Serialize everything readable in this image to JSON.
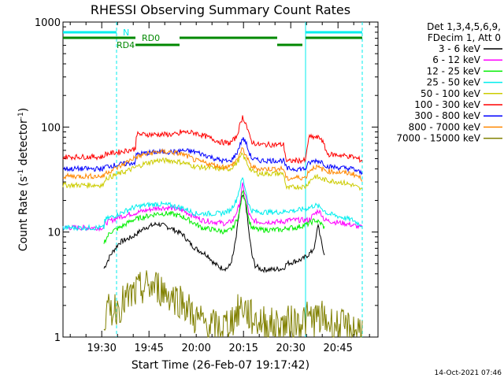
{
  "chart_data": {
    "type": "line",
    "title": "RHESSI Observing Summary Count Rates",
    "xlabel": "Start Time (26-Feb-07 19:17:42)",
    "ylabel_main": "Count Rate (s",
    "ylabel_sup1": "-1",
    "ylabel_mid": " detector",
    "ylabel_sup2": "-1",
    "ylabel_end": ")",
    "x_range_minutes": [
      0,
      100
    ],
    "y_range": [
      1,
      1000
    ],
    "y_scale": "log",
    "x_ticks": [
      {
        "label": "19:30",
        "minute": 12.3
      },
      {
        "label": "19:45",
        "minute": 27.3
      },
      {
        "label": "20:00",
        "minute": 42.3
      },
      {
        "label": "20:15",
        "minute": 57.3
      },
      {
        "label": "20:30",
        "minute": 72.3
      },
      {
        "label": "20:45",
        "minute": 87.3
      }
    ],
    "y_ticks": [
      {
        "label": "1000",
        "value": 1000
      },
      {
        "label": "100",
        "value": 100
      },
      {
        "label": "10",
        "value": 10
      },
      {
        "label": "1",
        "value": 1
      }
    ],
    "legend_header": [
      "Det 1,3,4,5,6,9,",
      "FDecim 1, Att 0"
    ],
    "series": [
      {
        "name": "3 - 6 keV",
        "color": "#000000",
        "points": [
          [
            13,
            4.5
          ],
          [
            15,
            6
          ],
          [
            18,
            8
          ],
          [
            22,
            9
          ],
          [
            26,
            11
          ],
          [
            30,
            12
          ],
          [
            34,
            11
          ],
          [
            38,
            9.5
          ],
          [
            40,
            8
          ],
          [
            42,
            7
          ],
          [
            46,
            6
          ],
          [
            48,
            5
          ],
          [
            50,
            4.6
          ],
          [
            52,
            4.5
          ],
          [
            53,
            4.8
          ],
          [
            54,
            6
          ],
          [
            55,
            9
          ],
          [
            56,
            16
          ],
          [
            57,
            22
          ],
          [
            58,
            19
          ],
          [
            59,
            10
          ],
          [
            60,
            6
          ],
          [
            61,
            4.8
          ],
          [
            63,
            4.4
          ],
          [
            67,
            4.4
          ],
          [
            70,
            4.5
          ],
          [
            71,
            5
          ],
          [
            76,
            5.5
          ],
          [
            79,
            6.5
          ],
          [
            80,
            7.5
          ],
          [
            81,
            12
          ],
          [
            82,
            8
          ],
          [
            83,
            6
          ]
        ],
        "x_start": 13,
        "x_end": 83
      },
      {
        "name": "6 - 12 keV",
        "color": "#ff00ff",
        "points": [
          [
            0,
            11
          ],
          [
            13,
            11
          ],
          [
            13,
            12
          ],
          [
            18,
            14
          ],
          [
            22,
            15
          ],
          [
            26,
            16
          ],
          [
            30,
            17
          ],
          [
            34,
            17
          ],
          [
            38,
            16
          ],
          [
            40,
            15
          ],
          [
            42,
            14
          ],
          [
            44,
            13
          ],
          [
            48,
            12.5
          ],
          [
            52,
            12
          ],
          [
            54,
            13
          ],
          [
            56,
            18
          ],
          [
            57,
            28
          ],
          [
            58,
            22
          ],
          [
            59,
            15
          ],
          [
            60,
            13
          ],
          [
            62,
            12.5
          ],
          [
            66,
            12.5
          ],
          [
            70,
            12.5
          ],
          [
            71,
            13
          ],
          [
            74,
            13
          ],
          [
            78,
            13
          ],
          [
            79,
            14
          ],
          [
            81,
            16
          ],
          [
            82,
            15
          ],
          [
            83,
            13
          ],
          [
            86,
            12.5
          ],
          [
            90,
            12
          ],
          [
            95,
            11
          ]
        ],
        "x_start": 0,
        "x_end": 95
      },
      {
        "name": "12 - 25 keV",
        "color": "#00ee00",
        "points": [
          [
            13,
            8
          ],
          [
            15,
            10
          ],
          [
            18,
            11
          ],
          [
            22,
            13
          ],
          [
            26,
            14
          ],
          [
            30,
            15
          ],
          [
            34,
            15
          ],
          [
            38,
            14
          ],
          [
            40,
            13
          ],
          [
            42,
            12
          ],
          [
            44,
            11
          ],
          [
            48,
            10.5
          ],
          [
            52,
            10
          ],
          [
            54,
            11
          ],
          [
            56,
            15
          ],
          [
            57,
            25
          ],
          [
            58,
            20
          ],
          [
            59,
            13
          ],
          [
            60,
            11
          ],
          [
            62,
            10.5
          ],
          [
            66,
            10.5
          ],
          [
            70,
            10.5
          ],
          [
            71,
            11
          ],
          [
            74,
            11
          ],
          [
            78,
            12
          ],
          [
            80,
            13
          ],
          [
            82,
            12
          ],
          [
            83,
            11
          ]
        ],
        "x_start": 13,
        "x_end": 83
      },
      {
        "name": "25 - 50 keV",
        "color": "#00eeee",
        "points": [
          [
            0,
            11
          ],
          [
            6,
            11
          ],
          [
            13,
            11
          ],
          [
            13,
            13
          ],
          [
            18,
            15
          ],
          [
            22,
            17
          ],
          [
            26,
            18
          ],
          [
            30,
            18.5
          ],
          [
            34,
            18
          ],
          [
            38,
            17
          ],
          [
            40,
            16
          ],
          [
            42,
            15
          ],
          [
            46,
            15
          ],
          [
            50,
            15
          ],
          [
            53,
            16
          ],
          [
            55,
            20
          ],
          [
            57,
            33
          ],
          [
            58,
            25
          ],
          [
            59,
            18
          ],
          [
            60,
            16
          ],
          [
            62,
            15.5
          ],
          [
            66,
            15.5
          ],
          [
            70,
            15.5
          ],
          [
            71,
            16
          ],
          [
            74,
            16
          ],
          [
            78,
            17
          ],
          [
            80,
            18
          ],
          [
            82,
            17
          ],
          [
            84,
            15
          ],
          [
            88,
            14
          ],
          [
            92,
            13
          ],
          [
            95,
            11.5
          ]
        ],
        "x_start": 0,
        "x_end": 95
      },
      {
        "name": "50 - 100 keV",
        "color": "#cccc00",
        "points": [
          [
            0,
            28
          ],
          [
            13,
            28
          ],
          [
            13,
            32
          ],
          [
            18,
            36
          ],
          [
            22,
            40
          ],
          [
            26,
            45
          ],
          [
            30,
            48
          ],
          [
            34,
            48
          ],
          [
            38,
            46
          ],
          [
            40,
            44
          ],
          [
            42,
            42
          ],
          [
            46,
            41
          ],
          [
            50,
            40
          ],
          [
            53,
            40
          ],
          [
            55,
            45
          ],
          [
            57,
            55
          ],
          [
            58,
            48
          ],
          [
            59,
            42
          ],
          [
            60,
            38
          ],
          [
            62,
            36
          ],
          [
            66,
            36
          ],
          [
            70,
            36
          ],
          [
            71,
            26
          ],
          [
            74,
            27
          ],
          [
            77,
            27
          ],
          [
            78,
            30
          ],
          [
            80,
            34
          ],
          [
            82,
            32
          ],
          [
            84,
            31
          ],
          [
            88,
            30
          ],
          [
            92,
            28
          ],
          [
            95,
            25
          ]
        ],
        "x_start": 0,
        "x_end": 95
      },
      {
        "name": "100 - 300 keV",
        "color": "#ff0000",
        "points": [
          [
            0,
            52
          ],
          [
            13,
            52
          ],
          [
            13,
            55
          ],
          [
            18,
            58
          ],
          [
            23,
            62
          ],
          [
            23,
            85
          ],
          [
            37,
            85
          ],
          [
            37,
            90
          ],
          [
            42,
            88
          ],
          [
            46,
            80
          ],
          [
            50,
            72
          ],
          [
            53,
            70
          ],
          [
            55,
            80
          ],
          [
            57,
            125
          ],
          [
            58,
            110
          ],
          [
            59,
            85
          ],
          [
            60,
            72
          ],
          [
            62,
            68
          ],
          [
            66,
            68
          ],
          [
            70,
            68
          ],
          [
            71,
            47
          ],
          [
            74,
            48
          ],
          [
            77,
            48
          ],
          [
            78,
            80
          ],
          [
            80,
            80
          ],
          [
            82,
            78
          ],
          [
            84,
            55
          ],
          [
            88,
            54
          ],
          [
            92,
            52
          ],
          [
            95,
            48
          ]
        ],
        "x_start": 0,
        "x_end": 95
      },
      {
        "name": "300 - 800 keV",
        "color": "#0000ff",
        "points": [
          [
            0,
            40
          ],
          [
            13,
            40
          ],
          [
            13,
            42
          ],
          [
            18,
            44
          ],
          [
            23,
            46
          ],
          [
            23,
            55
          ],
          [
            30,
            58
          ],
          [
            37,
            58
          ],
          [
            37,
            60
          ],
          [
            42,
            58
          ],
          [
            46,
            53
          ],
          [
            50,
            48
          ],
          [
            53,
            47
          ],
          [
            55,
            55
          ],
          [
            57,
            78
          ],
          [
            58,
            72
          ],
          [
            59,
            58
          ],
          [
            60,
            50
          ],
          [
            62,
            48
          ],
          [
            66,
            48
          ],
          [
            70,
            48
          ],
          [
            71,
            40
          ],
          [
            74,
            40
          ],
          [
            77,
            40
          ],
          [
            78,
            45
          ],
          [
            80,
            48
          ],
          [
            82,
            47
          ],
          [
            84,
            42
          ],
          [
            88,
            41
          ],
          [
            92,
            40
          ],
          [
            95,
            36
          ]
        ],
        "x_start": 0,
        "x_end": 95
      },
      {
        "name": "800 - 7000 keV",
        "color": "#ff8800",
        "points": [
          [
            0,
            34
          ],
          [
            13,
            34
          ],
          [
            13,
            36
          ],
          [
            18,
            42
          ],
          [
            22,
            50
          ],
          [
            26,
            55
          ],
          [
            30,
            58
          ],
          [
            34,
            58
          ],
          [
            38,
            55
          ],
          [
            40,
            52
          ],
          [
            42,
            48
          ],
          [
            46,
            45
          ],
          [
            50,
            42
          ],
          [
            53,
            42
          ],
          [
            55,
            48
          ],
          [
            57,
            62
          ],
          [
            58,
            55
          ],
          [
            59,
            46
          ],
          [
            60,
            42
          ],
          [
            62,
            40
          ],
          [
            66,
            40
          ],
          [
            70,
            40
          ],
          [
            71,
            32
          ],
          [
            74,
            33
          ],
          [
            77,
            33
          ],
          [
            78,
            38
          ],
          [
            80,
            42
          ],
          [
            82,
            40
          ],
          [
            84,
            38
          ],
          [
            88,
            37
          ],
          [
            92,
            36
          ],
          [
            95,
            32
          ]
        ],
        "x_start": 0,
        "x_end": 95
      },
      {
        "name": "7000 - 15000 keV",
        "color": "#808000",
        "points": [
          [
            13,
            1.5
          ],
          [
            15,
            1.8
          ],
          [
            18,
            2
          ],
          [
            22,
            2.5
          ],
          [
            26,
            3
          ],
          [
            30,
            3
          ],
          [
            34,
            2.5
          ],
          [
            38,
            2.2
          ],
          [
            40,
            1.8
          ],
          [
            42,
            1.5
          ],
          [
            46,
            1.3
          ],
          [
            50,
            1.2
          ],
          [
            54,
            1.5
          ],
          [
            57,
            2
          ],
          [
            60,
            1.5
          ],
          [
            66,
            1.3
          ],
          [
            70,
            1.3
          ],
          [
            74,
            1.4
          ],
          [
            78,
            1.5
          ],
          [
            82,
            1.5
          ],
          [
            86,
            1.3
          ],
          [
            90,
            1.2
          ],
          [
            95,
            1.2
          ]
        ],
        "x_start": 13,
        "x_end": 95
      }
    ],
    "flags": [
      {
        "label": "N",
        "color": "#00eeee",
        "segments": [
          [
            0,
            17
          ],
          [
            77,
            95
          ]
        ]
      },
      {
        "label": "RD0",
        "color": "#008800",
        "segments": [
          [
            0,
            23
          ],
          [
            37,
            68
          ],
          [
            77,
            95
          ]
        ]
      },
      {
        "label": "RD4",
        "color": "#008800",
        "segments": [
          [
            23,
            37
          ],
          [
            68,
            76
          ]
        ]
      }
    ],
    "vertical_markers": [
      {
        "minute": 17,
        "color": "#00eeee",
        "style": "dashed"
      },
      {
        "minute": 77,
        "color": "#00eeee",
        "style": "solid"
      },
      {
        "minute": 95,
        "color": "#00eeee",
        "style": "dashed"
      }
    ],
    "footer_date": "14-Oct-2021 07:46"
  }
}
